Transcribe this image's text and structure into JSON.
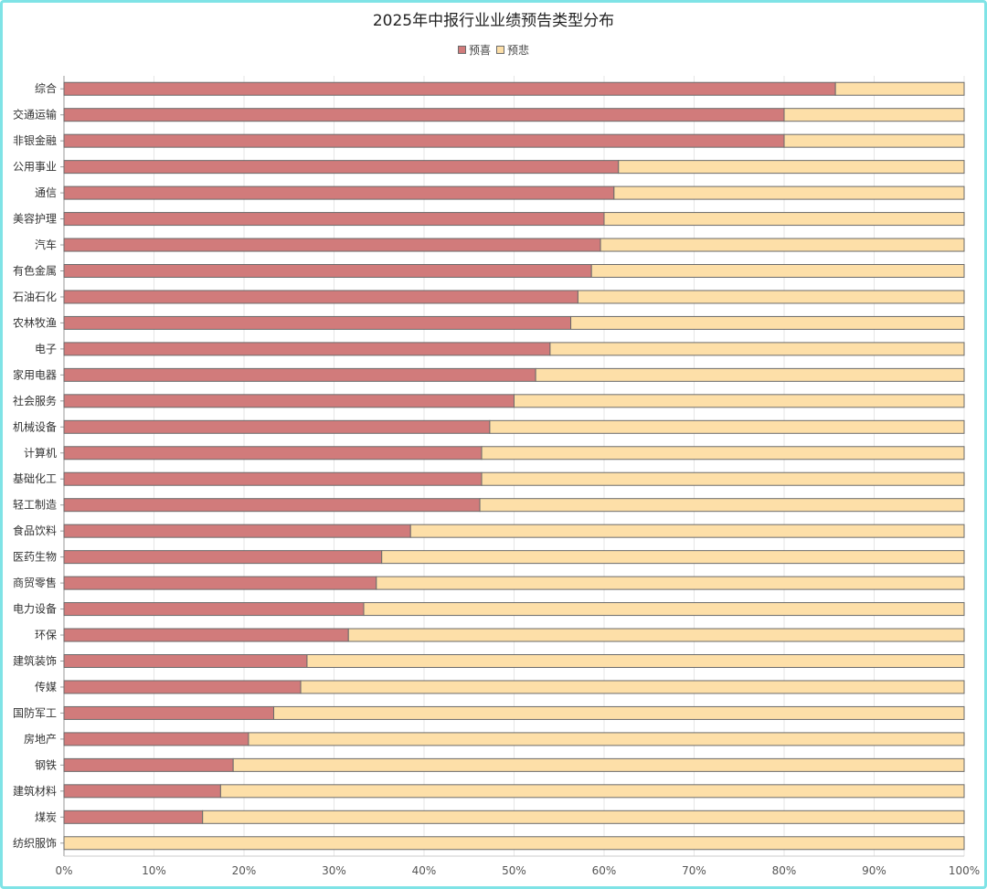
{
  "chart_data": {
    "type": "bar",
    "orientation": "horizontal",
    "stacked": true,
    "percent": true,
    "title": "2025年中报行业业绩预告类型分布",
    "legend_position": "top-center",
    "grid": true,
    "xlim": [
      0,
      100
    ],
    "x_ticks": [
      "0%",
      "10%",
      "20%",
      "30%",
      "40%",
      "50%",
      "60%",
      "70%",
      "80%",
      "90%",
      "100%"
    ],
    "categories": [
      "综合",
      "交通运输",
      "非银金融",
      "公用事业",
      "通信",
      "美容护理",
      "汽车",
      "有色金属",
      "石油石化",
      "农林牧渔",
      "电子",
      "家用电器",
      "社会服务",
      "机械设备",
      "计算机",
      "基础化工",
      "轻工制造",
      "食品饮料",
      "医药生物",
      "商贸零售",
      "电力设备",
      "环保",
      "建筑装饰",
      "传媒",
      "国防军工",
      "房地产",
      "钢铁",
      "建筑材料",
      "煤炭",
      "纺织服饰"
    ],
    "series": [
      {
        "name": "预喜",
        "color": "#d17b7b",
        "values": [
          85.7,
          80.0,
          80.0,
          61.6,
          61.1,
          60.0,
          59.6,
          58.6,
          57.1,
          56.3,
          54.0,
          52.4,
          50.0,
          47.3,
          46.4,
          46.4,
          46.2,
          38.5,
          35.3,
          34.7,
          33.3,
          31.6,
          27.0,
          26.3,
          23.3,
          20.5,
          18.8,
          17.4,
          15.4,
          0.0
        ]
      },
      {
        "name": "预悲",
        "color": "#fddfa8",
        "values": [
          14.3,
          20.0,
          20.0,
          38.4,
          38.9,
          40.0,
          40.4,
          41.4,
          42.9,
          43.7,
          46.0,
          47.6,
          50.0,
          52.7,
          53.6,
          53.6,
          53.8,
          61.5,
          64.7,
          65.3,
          66.7,
          68.4,
          73.0,
          73.7,
          76.7,
          79.5,
          81.2,
          82.6,
          84.6,
          100.0
        ]
      }
    ]
  }
}
